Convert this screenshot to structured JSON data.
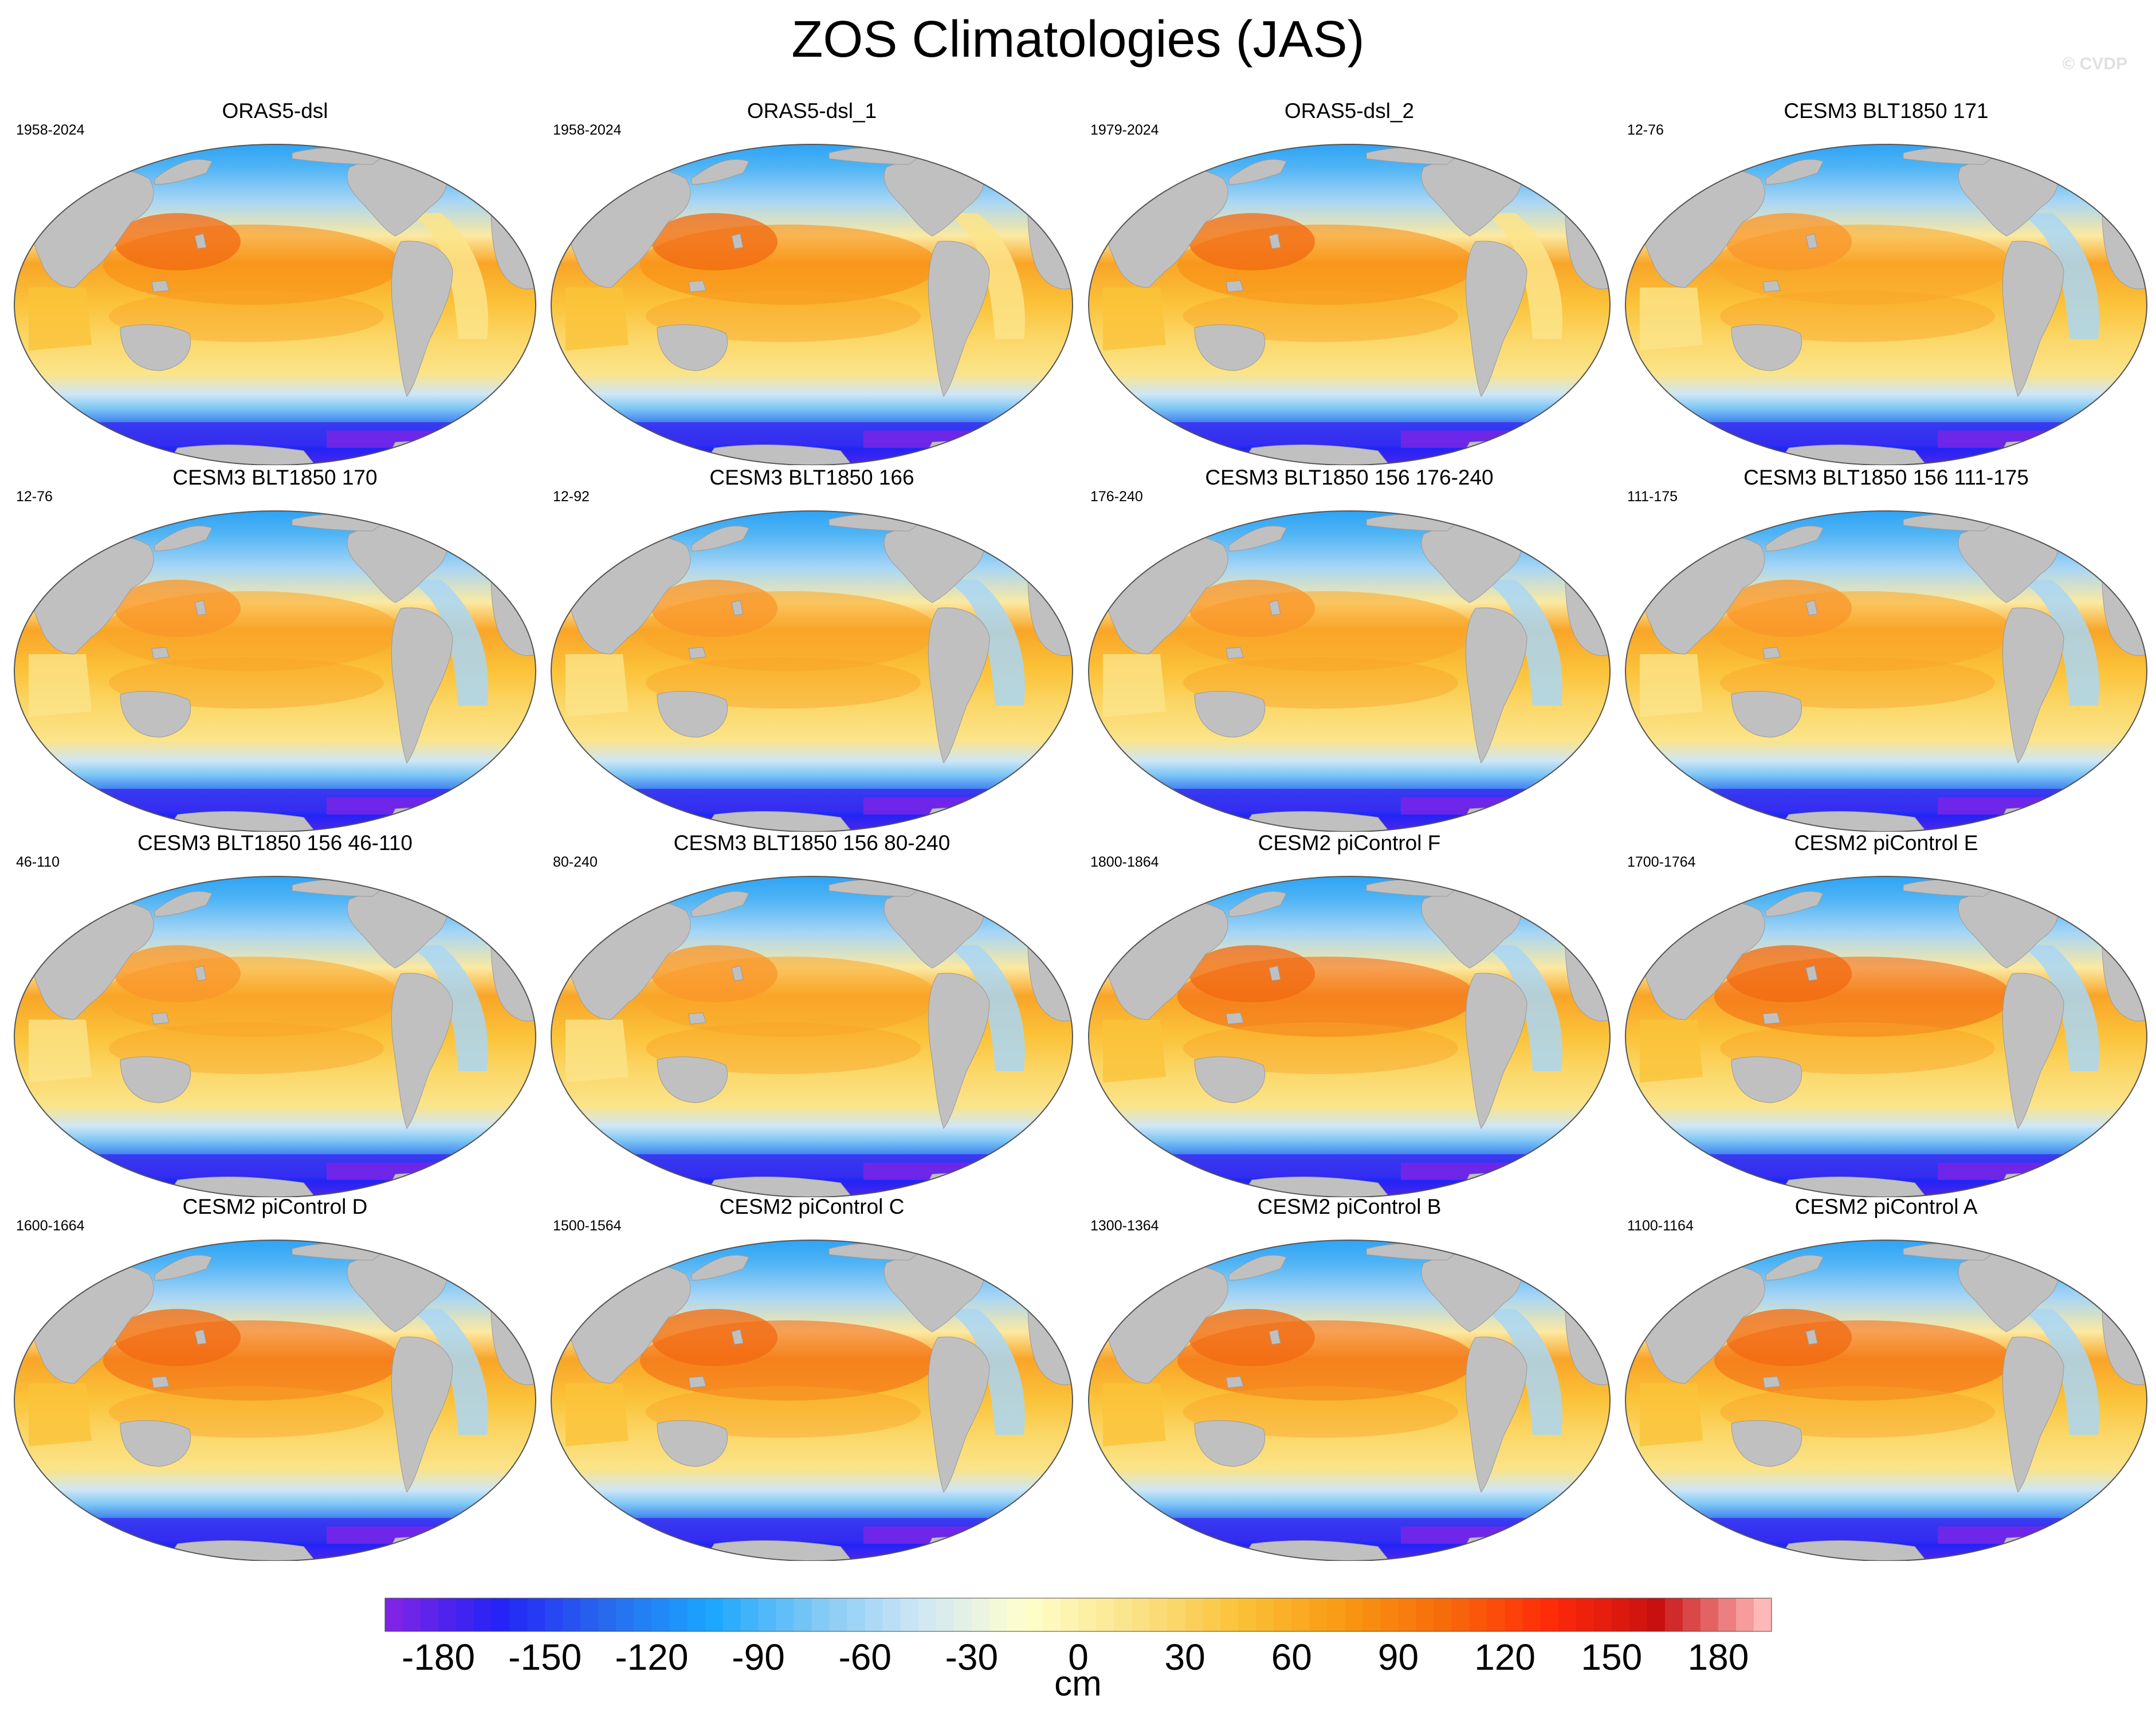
{
  "title": "ZOS Climatologies (JAS)",
  "watermark": "© CVDP",
  "panels": [
    {
      "title": "ORAS5-dsl",
      "years": "1958-2024",
      "style": "obs"
    },
    {
      "title": "ORAS5-dsl_1",
      "years": "1958-2024",
      "style": "obs"
    },
    {
      "title": "ORAS5-dsl_2",
      "years": "1979-2024",
      "style": "obs"
    },
    {
      "title": "CESM3 BLT1850 171",
      "years": "12-76",
      "style": "cesm3"
    },
    {
      "title": "CESM3 BLT1850 170",
      "years": "12-76",
      "style": "cesm3"
    },
    {
      "title": "CESM3 BLT1850 166",
      "years": "12-92",
      "style": "cesm3"
    },
    {
      "title": "CESM3 BLT1850 156 176-240",
      "years": "176-240",
      "style": "cesm3"
    },
    {
      "title": "CESM3 BLT1850 156 111-175",
      "years": "111-175",
      "style": "cesm3"
    },
    {
      "title": "CESM3 BLT1850 156 46-110",
      "years": "46-110",
      "style": "cesm3"
    },
    {
      "title": "CESM3 BLT1850 156 80-240",
      "years": "80-240",
      "style": "cesm3"
    },
    {
      "title": "CESM2 piControl F",
      "years": "1800-1864",
      "style": "cesm2"
    },
    {
      "title": "CESM2 piControl E",
      "years": "1700-1764",
      "style": "cesm2"
    },
    {
      "title": "CESM2 piControl D",
      "years": "1600-1664",
      "style": "cesm2"
    },
    {
      "title": "CESM2 piControl C",
      "years": "1500-1564",
      "style": "cesm2"
    },
    {
      "title": "CESM2 piControl B",
      "years": "1300-1364",
      "style": "cesm2"
    },
    {
      "title": "CESM2 piControl A",
      "years": "1100-1164",
      "style": "cesm2"
    }
  ],
  "colorbar": {
    "unit": "cm",
    "range": [
      -195,
      195
    ],
    "step": 5,
    "tick_labels": [
      "-180",
      "-150",
      "-120",
      "-90",
      "-60",
      "-30",
      "0",
      "30",
      "60",
      "90",
      "120",
      "150",
      "180"
    ],
    "colors": {
      "land": "#c0c0c0",
      "colormap": [
        "#7d24e6",
        "#2323f5",
        "#2868ee",
        "#1aa6ff",
        "#7fc8f5",
        "#cfe6f6",
        "#ffffcc",
        "#fbe48a",
        "#fbc33a",
        "#f99a14",
        "#f76a0a",
        "#ff2a0a",
        "#c81010",
        "#ffb8b8"
      ]
    }
  }
}
